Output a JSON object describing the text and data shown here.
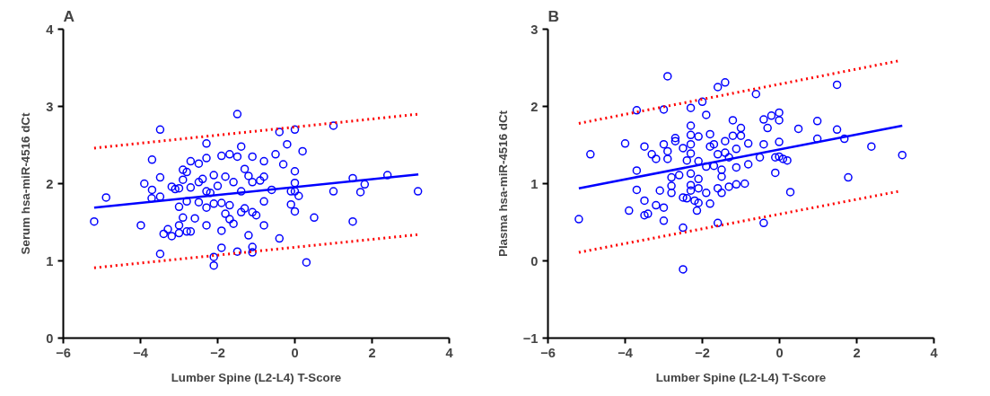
{
  "chart_data": [
    {
      "type": "scatter",
      "title": "A",
      "xlabel": "Lumber Spine (L2-L4) T-Score",
      "ylabel": "Serum hsa-miR-4516 dCt",
      "xlim": [
        -6,
        4
      ],
      "ylim": [
        0,
        4
      ],
      "xticks": [
        -6,
        -4,
        -2,
        0,
        2,
        4
      ],
      "yticks": [
        0,
        1,
        2,
        3,
        4
      ],
      "grid": false,
      "marker": "circle",
      "series": [
        {
          "color": "#0000ff",
          "x": [
            -5.2,
            -4.89,
            -3.99,
            -3.9,
            -3.7,
            -3.7,
            -3.71,
            -3.49,
            -3.49,
            -3.49,
            -3.49,
            -3.4,
            -3.29,
            -3.19,
            -3.19,
            -3.1,
            -3.0,
            -3.0,
            -3.0,
            -3.0,
            -2.9,
            -2.9,
            -2.9,
            -2.8,
            -2.8,
            -2.8,
            -2.7,
            -2.7,
            -2.7,
            -2.59,
            -2.49,
            -2.49,
            -2.49,
            -2.39,
            -2.29,
            -2.29,
            -2.29,
            -2.29,
            -2.29,
            -2.19,
            -2.1,
            -2.1,
            -2.1,
            -2.1,
            -2.0,
            -1.9,
            -1.9,
            -1.9,
            -1.9,
            -1.8,
            -1.8,
            -1.69,
            -1.69,
            -1.69,
            -1.59,
            -1.59,
            -1.49,
            -1.49,
            -1.49,
            -1.39,
            -1.39,
            -1.39,
            -1.3,
            -1.3,
            -1.2,
            -1.2,
            -1.1,
            -1.1,
            -1.1,
            -1.1,
            -1.1,
            -1.0,
            -0.9,
            -0.8,
            -0.8,
            -0.8,
            -0.8,
            -0.6,
            -0.5,
            -0.4,
            -0.4,
            -0.3,
            -0.2,
            -0.1,
            -0.1,
            0.0,
            0.0,
            0.0,
            0.0,
            0.0,
            0.1,
            0.2,
            0.3,
            0.5,
            1.0,
            1.0,
            1.5,
            1.5,
            1.7,
            1.81,
            2.4,
            3.19
          ],
          "values": [
            1.51,
            1.82,
            1.46,
            2.0,
            2.31,
            1.92,
            1.81,
            2.7,
            2.08,
            1.83,
            1.09,
            1.35,
            1.41,
            1.32,
            1.96,
            1.93,
            1.94,
            1.7,
            1.46,
            1.36,
            2.18,
            2.05,
            1.56,
            2.15,
            1.77,
            1.38,
            2.29,
            1.95,
            1.38,
            1.55,
            2.26,
            2.02,
            1.76,
            2.06,
            2.52,
            2.33,
            1.9,
            1.69,
            1.46,
            1.88,
            2.11,
            1.05,
            0.94,
            1.74,
            1.97,
            2.36,
            1.75,
            1.39,
            1.17,
            2.09,
            1.61,
            2.38,
            1.72,
            1.54,
            2.02,
            1.48,
            2.9,
            2.35,
            1.12,
            2.48,
            1.9,
            1.63,
            2.19,
            1.68,
            2.1,
            1.33,
            2.35,
            2.02,
            1.63,
            1.18,
            1.11,
            1.59,
            2.04,
            2.29,
            2.09,
            1.77,
            1.46,
            1.92,
            2.38,
            2.67,
            1.29,
            2.25,
            2.51,
            1.73,
            1.9,
            2.7,
            2.16,
            2.01,
            1.9,
            1.64,
            1.84,
            2.42,
            0.98,
            1.56,
            2.75,
            1.9,
            2.07,
            1.51,
            1.89,
            1.99,
            2.11,
            1.9
          ]
        },
        {
          "type": "line",
          "color": "#0000ff",
          "marker": "none",
          "line_style": "solid",
          "x": [
            -5.2,
            3.2
          ],
          "values": [
            1.69,
            2.12
          ]
        },
        {
          "type": "line",
          "color": "#ff0000",
          "marker": "none",
          "line_style": "dotted",
          "x": [
            -5.2,
            3.2
          ],
          "values": [
            2.46,
            2.9
          ]
        },
        {
          "type": "line",
          "color": "#ff0000",
          "marker": "none",
          "line_style": "dotted",
          "x": [
            -5.2,
            3.2
          ],
          "values": [
            0.91,
            1.34
          ]
        }
      ]
    },
    {
      "type": "scatter",
      "title": "B",
      "xlabel": "Lumber Spine (L2-L4) T-Score",
      "ylabel": "Plasma hsa-miR-4516 dCt",
      "xlim": [
        -6,
        4
      ],
      "ylim": [
        -1,
        3
      ],
      "xticks": [
        -6,
        -4,
        -2,
        0,
        2,
        4
      ],
      "yticks": [
        -1,
        0,
        1,
        2,
        3
      ],
      "grid": false,
      "marker": "circle",
      "series": [
        {
          "color": "#0000ff",
          "x": [
            -5.2,
            -4.9,
            -4.0,
            -3.9,
            -3.7,
            -3.7,
            -3.7,
            -3.5,
            -3.5,
            -3.5,
            -3.41,
            -3.31,
            -3.2,
            -3.2,
            -3.1,
            -3.0,
            -3.0,
            -3.0,
            -3.0,
            -2.9,
            -2.9,
            -2.9,
            -2.8,
            -2.8,
            -2.8,
            -2.7,
            -2.7,
            -2.6,
            -2.5,
            -2.5,
            -2.5,
            -2.5,
            -2.4,
            -2.4,
            -2.3,
            -2.3,
            -2.3,
            -2.3,
            -2.3,
            -2.3,
            -2.3,
            -2.3,
            -2.2,
            -2.1,
            -2.1,
            -2.1,
            -2.1,
            -2.1,
            -2.14,
            -2.0,
            -1.9,
            -1.9,
            -1.9,
            -1.8,
            -1.8,
            -1.8,
            -1.7,
            -1.7,
            -1.6,
            -1.6,
            -1.6,
            -1.6,
            -1.5,
            -1.5,
            -1.5,
            -1.41,
            -1.41,
            -1.41,
            -1.31,
            -1.31,
            -1.21,
            -1.21,
            -1.12,
            -1.12,
            -1.12,
            -1.0,
            -1.0,
            -0.9,
            -0.81,
            -0.81,
            -0.61,
            -0.51,
            -0.41,
            -0.41,
            -0.41,
            -0.31,
            -0.21,
            -0.11,
            -0.11,
            -0.01,
            -0.01,
            -0.01,
            -0.01,
            0.09,
            0.2,
            0.28,
            0.49,
            0.98,
            0.98,
            1.49,
            1.49,
            1.68,
            1.78,
            2.38,
            3.18
          ],
          "values": [
            0.54,
            1.38,
            1.52,
            0.65,
            1.95,
            1.17,
            0.92,
            1.48,
            0.78,
            0.59,
            0.61,
            1.38,
            1.32,
            0.72,
            0.91,
            1.96,
            1.51,
            0.69,
            0.52,
            2.39,
            1.42,
            1.32,
            1.08,
            0.97,
            0.88,
            1.59,
            1.55,
            1.11,
            1.46,
            0.82,
            0.43,
            -0.11,
            1.3,
            0.81,
            1.98,
            1.75,
            1.63,
            1.51,
            1.39,
            1.13,
            0.98,
            0.91,
            0.78,
            1.61,
            1.29,
            1.06,
            0.94,
            0.75,
            0.65,
            2.06,
            1.89,
            1.22,
            0.88,
            1.64,
            1.48,
            0.74,
            1.51,
            1.23,
            2.25,
            1.38,
            0.94,
            0.49,
            1.18,
            1.09,
            0.88,
            2.31,
            1.55,
            1.4,
            1.34,
            0.96,
            1.82,
            1.62,
            1.45,
            1.21,
            0.99,
            1.72,
            1.62,
            1.0,
            1.52,
            1.25,
            2.16,
            1.34,
            1.83,
            1.51,
            0.49,
            1.72,
            1.88,
            1.34,
            1.14,
            1.92,
            1.82,
            1.54,
            1.35,
            1.32,
            1.3,
            0.89,
            1.71,
            1.81,
            1.58,
            2.28,
            1.7,
            1.58,
            1.08,
            1.48,
            1.37
          ]
        },
        {
          "type": "line",
          "color": "#0000ff",
          "marker": "none",
          "line_style": "solid",
          "x": [
            -5.2,
            3.18
          ],
          "values": [
            0.94,
            1.75
          ]
        },
        {
          "type": "line",
          "color": "#ff0000",
          "marker": "none",
          "line_style": "dotted",
          "x": [
            -5.2,
            3.09
          ],
          "values": [
            1.78,
            2.59
          ]
        },
        {
          "type": "line",
          "color": "#ff0000",
          "marker": "none",
          "line_style": "dotted",
          "x": [
            -5.2,
            3.09
          ],
          "values": [
            0.11,
            0.9
          ]
        }
      ]
    }
  ]
}
